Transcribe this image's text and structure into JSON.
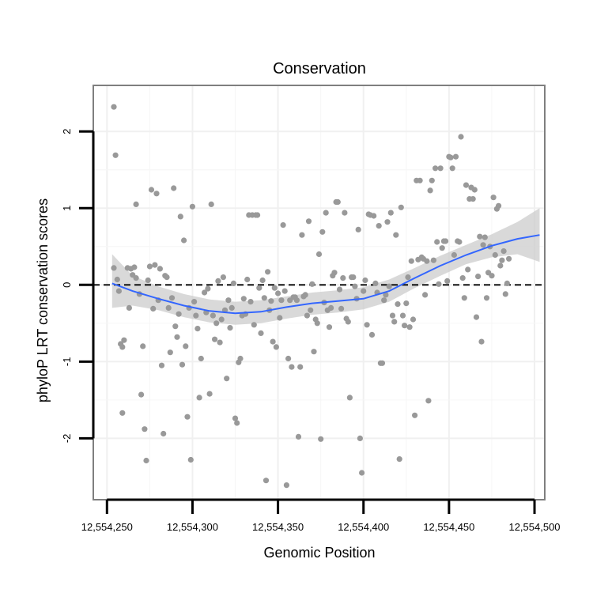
{
  "chart_data": {
    "type": "scatter",
    "title": "Conservation",
    "xlabel": "Genomic Position",
    "ylabel": "phyloP LRT conservation scores",
    "xlim": [
      12554242,
      12554506
    ],
    "ylim": [
      -2.8,
      2.6
    ],
    "x_ticks": [
      12554250,
      12554300,
      12554350,
      12554400,
      12554450,
      12554500
    ],
    "x_tick_labels": [
      "12,554,250",
      "12,554,300",
      "12,554,350",
      "12,554,400",
      "12,554,450",
      "12,554,500"
    ],
    "y_ticks": [
      -2,
      -1,
      0,
      1,
      2
    ],
    "y_tick_labels": [
      "-2",
      "-1",
      "0",
      "1",
      "2"
    ],
    "reference_line_y": 0,
    "grid": true,
    "point_color": "#999999",
    "smooth_color": "#3366FF",
    "ribbon_color": "#cccccc",
    "points": [
      [
        12554254,
        2.32
      ],
      [
        12554255,
        1.69
      ],
      [
        12554254,
        0.22
      ],
      [
        12554256,
        0.07
      ],
      [
        12554257,
        -0.08
      ],
      [
        12554258,
        -0.77
      ],
      [
        12554259,
        -0.81
      ],
      [
        12554260,
        -0.72
      ],
      [
        12554259,
        -1.67
      ],
      [
        12554262,
        0.22
      ],
      [
        12554263,
        -0.3
      ],
      [
        12554264,
        0.21
      ],
      [
        12554265,
        0.13
      ],
      [
        12554266,
        0.23
      ],
      [
        12554267,
        1.05
      ],
      [
        12554267,
        0.09
      ],
      [
        12554269,
        -0.12
      ],
      [
        12554270,
        -1.43
      ],
      [
        12554271,
        -0.8
      ],
      [
        12554272,
        -1.88
      ],
      [
        12554273,
        -2.29
      ],
      [
        12554274,
        0.06
      ],
      [
        12554275,
        0.24
      ],
      [
        12554276,
        1.24
      ],
      [
        12554277,
        -0.31
      ],
      [
        12554278,
        0.26
      ],
      [
        12554279,
        1.19
      ],
      [
        12554280,
        -0.2
      ],
      [
        12554281,
        0.21
      ],
      [
        12554282,
        -1.05
      ],
      [
        12554283,
        -1.94
      ],
      [
        12554284,
        0.12
      ],
      [
        12554285,
        0.1
      ],
      [
        12554286,
        -0.3
      ],
      [
        12554287,
        -0.88
      ],
      [
        12554288,
        -0.17
      ],
      [
        12554289,
        1.26
      ],
      [
        12554290,
        -0.54
      ],
      [
        12554291,
        -0.68
      ],
      [
        12554292,
        -0.38
      ],
      [
        12554293,
        0.89
      ],
      [
        12554294,
        -1.04
      ],
      [
        12554295,
        0.58
      ],
      [
        12554296,
        -0.8
      ],
      [
        12554297,
        -1.72
      ],
      [
        12554298,
        -0.3
      ],
      [
        12554299,
        -2.28
      ],
      [
        12554300,
        1.02
      ],
      [
        12554301,
        -0.22
      ],
      [
        12554302,
        -0.4
      ],
      [
        12554303,
        -0.57
      ],
      [
        12554304,
        -1.47
      ],
      [
        12554305,
        -0.96
      ],
      [
        12554307,
        -0.1
      ],
      [
        12554308,
        -0.36
      ],
      [
        12554309,
        -0.05
      ],
      [
        12554310,
        -1.42
      ],
      [
        12554311,
        1.05
      ],
      [
        12554312,
        -0.4
      ],
      [
        12554313,
        -0.71
      ],
      [
        12554314,
        -0.5
      ],
      [
        12554315,
        0.05
      ],
      [
        12554316,
        -0.75
      ],
      [
        12554317,
        -0.45
      ],
      [
        12554318,
        0.1
      ],
      [
        12554319,
        -0.33
      ],
      [
        12554320,
        -1.22
      ],
      [
        12554321,
        -0.2
      ],
      [
        12554322,
        -0.56
      ],
      [
        12554323,
        -0.3
      ],
      [
        12554324,
        0.02
      ],
      [
        12554325,
        -1.74
      ],
      [
        12554326,
        -1.8
      ],
      [
        12554327,
        -1.01
      ],
      [
        12554328,
        -0.96
      ],
      [
        12554329,
        -0.4
      ],
      [
        12554330,
        -0.18
      ],
      [
        12554331,
        -0.38
      ],
      [
        12554332,
        0.07
      ],
      [
        12554333,
        0.91
      ],
      [
        12554334,
        -0.22
      ],
      [
        12554335,
        0.91
      ],
      [
        12554336,
        -0.52
      ],
      [
        12554337,
        0.91
      ],
      [
        12554338,
        0.91
      ],
      [
        12554339,
        -0.04
      ],
      [
        12554340,
        -0.63
      ],
      [
        12554341,
        0.06
      ],
      [
        12554342,
        -0.17
      ],
      [
        12554343,
        -2.55
      ],
      [
        12554344,
        0.17
      ],
      [
        12554345,
        -0.33
      ],
      [
        12554346,
        -0.21
      ],
      [
        12554347,
        -0.74
      ],
      [
        12554348,
        -0.04
      ],
      [
        12554349,
        -0.81
      ],
      [
        12554350,
        -0.11
      ],
      [
        12554351,
        -0.43
      ],
      [
        12554352,
        -0.2
      ],
      [
        12554353,
        0.78
      ],
      [
        12554354,
        -0.08
      ],
      [
        12554355,
        -2.61
      ],
      [
        12554356,
        -0.96
      ],
      [
        12554357,
        -0.2
      ],
      [
        12554358,
        -1.07
      ],
      [
        12554359,
        -0.16
      ],
      [
        12554360,
        -0.16
      ],
      [
        12554361,
        -0.2
      ],
      [
        12554362,
        -1.98
      ],
      [
        12554363,
        -1.07
      ],
      [
        12554364,
        0.65
      ],
      [
        12554365,
        -0.15
      ],
      [
        12554366,
        -0.13
      ],
      [
        12554367,
        -0.4
      ],
      [
        12554368,
        0.83
      ],
      [
        12554369,
        -0.33
      ],
      [
        12554370,
        0.01
      ],
      [
        12554371,
        -0.87
      ],
      [
        12554372,
        -0.45
      ],
      [
        12554373,
        -0.5
      ],
      [
        12554374,
        0.4
      ],
      [
        12554375,
        -2.01
      ],
      [
        12554376,
        0.69
      ],
      [
        12554377,
        -0.23
      ],
      [
        12554378,
        0.94
      ],
      [
        12554379,
        -0.33
      ],
      [
        12554380,
        -0.55
      ],
      [
        12554381,
        -0.3
      ],
      [
        12554382,
        0.12
      ],
      [
        12554383,
        0.16
      ],
      [
        12554384,
        1.08
      ],
      [
        12554385,
        1.08
      ],
      [
        12554386,
        -0.06
      ],
      [
        12554387,
        -0.31
      ],
      [
        12554388,
        0.09
      ],
      [
        12554389,
        0.94
      ],
      [
        12554390,
        -0.44
      ],
      [
        12554391,
        -0.48
      ],
      [
        12554392,
        -1.47
      ],
      [
        12554393,
        0.1
      ],
      [
        12554394,
        0.1
      ],
      [
        12554395,
        -0.02
      ],
      [
        12554396,
        -0.18
      ],
      [
        12554397,
        0.72
      ],
      [
        12554398,
        -2.0
      ],
      [
        12554399,
        -2.45
      ],
      [
        12554400,
        -0.08
      ],
      [
        12554401,
        0.06
      ],
      [
        12554402,
        -0.52
      ],
      [
        12554403,
        0.92
      ],
      [
        12554404,
        0.91
      ],
      [
        12554405,
        -0.65
      ],
      [
        12554406,
        0.9
      ],
      [
        12554407,
        0.02
      ],
      [
        12554408,
        -0.1
      ],
      [
        12554409,
        0.77
      ],
      [
        12554410,
        -1.02
      ],
      [
        12554411,
        -1.02
      ],
      [
        12554412,
        -0.2
      ],
      [
        12554413,
        -0.13
      ],
      [
        12554414,
        0.82
      ],
      [
        12554415,
        -0.02
      ],
      [
        12554416,
        0.94
      ],
      [
        12554417,
        -0.4
      ],
      [
        12554418,
        -0.48
      ],
      [
        12554419,
        0.65
      ],
      [
        12554420,
        -0.25
      ],
      [
        12554421,
        -2.27
      ],
      [
        12554422,
        1.01
      ],
      [
        12554423,
        -0.4
      ],
      [
        12554424,
        -0.53
      ],
      [
        12554425,
        -0.24
      ],
      [
        12554426,
        0.1
      ],
      [
        12554427,
        -0.55
      ],
      [
        12554428,
        0.31
      ],
      [
        12554429,
        -0.45
      ],
      [
        12554430,
        -1.7
      ],
      [
        12554431,
        1.36
      ],
      [
        12554432,
        0.33
      ],
      [
        12554433,
        1.36
      ],
      [
        12554434,
        0.36
      ],
      [
        12554435,
        0.34
      ],
      [
        12554436,
        -0.13
      ],
      [
        12554437,
        0.31
      ],
      [
        12554438,
        -1.51
      ],
      [
        12554439,
        1.23
      ],
      [
        12554440,
        1.36
      ],
      [
        12554441,
        0.32
      ],
      [
        12554442,
        1.52
      ],
      [
        12554443,
        0.56
      ],
      [
        12554444,
        0.01
      ],
      [
        12554445,
        1.52
      ],
      [
        12554446,
        0.48
      ],
      [
        12554447,
        0.57
      ],
      [
        12554448,
        0.57
      ],
      [
        12554449,
        0.05
      ],
      [
        12554450,
        1.67
      ],
      [
        12554451,
        1.66
      ],
      [
        12554452,
        1.52
      ],
      [
        12554453,
        0.39
      ],
      [
        12554454,
        1.67
      ],
      [
        12554455,
        0.57
      ],
      [
        12554456,
        0.56
      ],
      [
        12554457,
        1.93
      ],
      [
        12554458,
        0.09
      ],
      [
        12554459,
        -0.17
      ],
      [
        12554460,
        1.3
      ],
      [
        12554461,
        0.2
      ],
      [
        12554462,
        1.12
      ],
      [
        12554463,
        1.27
      ],
      [
        12554464,
        1.12
      ],
      [
        12554465,
        1.24
      ],
      [
        12554466,
        -0.42
      ],
      [
        12554467,
        0.11
      ],
      [
        12554468,
        0.63
      ],
      [
        12554469,
        -0.74
      ],
      [
        12554470,
        0.52
      ],
      [
        12554471,
        0.62
      ],
      [
        12554472,
        -0.17
      ],
      [
        12554473,
        0.16
      ],
      [
        12554474,
        0.5
      ],
      [
        12554475,
        0.12
      ],
      [
        12554476,
        1.14
      ],
      [
        12554477,
        0.39
      ],
      [
        12554478,
        0.99
      ],
      [
        12554479,
        1.03
      ],
      [
        12554480,
        0.25
      ],
      [
        12554481,
        0.32
      ],
      [
        12554482,
        0.44
      ],
      [
        12554483,
        -0.12
      ],
      [
        12554484,
        0.02
      ],
      [
        12554485,
        0.34
      ]
    ],
    "smooth_line": {
      "name": "",
      "x": [
        12554253,
        12554265,
        12554280,
        12554295,
        12554310,
        12554325,
        12554340,
        12554355,
        12554370,
        12554385,
        12554400,
        12554415,
        12554430,
        12554445,
        12554460,
        12554475,
        12554490,
        12554503
      ],
      "y": [
        0.02,
        -0.08,
        -0.18,
        -0.27,
        -0.34,
        -0.37,
        -0.35,
        -0.29,
        -0.24,
        -0.21,
        -0.18,
        -0.08,
        0.09,
        0.25,
        0.39,
        0.51,
        0.6,
        0.65
      ],
      "lower": [
        -0.3,
        -0.27,
        -0.33,
        -0.42,
        -0.49,
        -0.52,
        -0.5,
        -0.44,
        -0.39,
        -0.36,
        -0.32,
        -0.22,
        -0.04,
        0.12,
        0.27,
        0.36,
        0.4,
        0.3
      ],
      "upper": [
        0.4,
        0.12,
        -0.02,
        -0.12,
        -0.19,
        -0.22,
        -0.2,
        -0.15,
        -0.1,
        -0.07,
        -0.03,
        0.07,
        0.22,
        0.38,
        0.52,
        0.66,
        0.82,
        1.0
      ]
    }
  }
}
